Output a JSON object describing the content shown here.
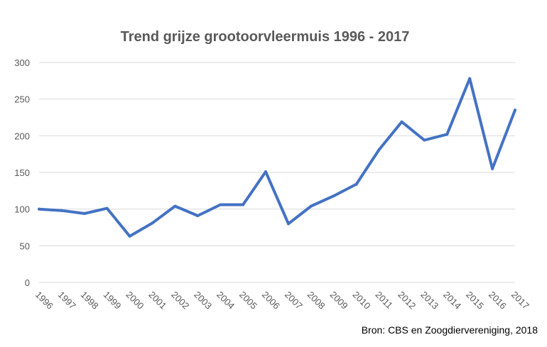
{
  "chart_data": {
    "type": "line",
    "title": "Trend grijze grootoorvleermuis 1996 - 2017",
    "source": "Bron: CBS en Zoogdiervereniging, 2018",
    "categories": [
      "1996",
      "1997",
      "1998",
      "1999",
      "2000",
      "2001",
      "2002",
      "2003",
      "2004",
      "2005",
      "2006",
      "2007",
      "2008",
      "2009",
      "2010",
      "2011",
      "2012",
      "2013",
      "2014",
      "2015",
      "2016",
      "2017"
    ],
    "series": [
      {
        "values": [
          100,
          98,
          94,
          101,
          63,
          81,
          104,
          91,
          106,
          106,
          151,
          80,
          104,
          118,
          134,
          181,
          219,
          194,
          202,
          278,
          155,
          235
        ]
      }
    ],
    "yticks": [
      "0",
      "50",
      "100",
      "150",
      "200",
      "250",
      "300"
    ],
    "ylim": [
      0,
      300
    ],
    "grid": true,
    "legend": "none",
    "line_color": "#4472c4",
    "grid_color": "#d9d9d9"
  }
}
